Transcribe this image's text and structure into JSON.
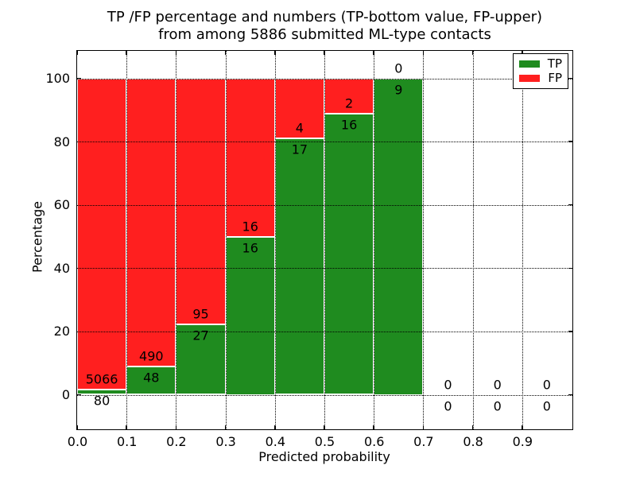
{
  "chart_data": {
    "type": "bar",
    "stacked": true,
    "title_lines": [
      "TP /FP percentage and numbers (TP-bottom value, FP-upper)",
      "from among 5886 submitted ML-type contacts"
    ],
    "xlabel": "Predicted probability",
    "ylabel": "Percentage",
    "x_ticks": [
      "0.0",
      "0.1",
      "0.2",
      "0.3",
      "0.4",
      "0.5",
      "0.6",
      "0.7",
      "0.8",
      "0.9"
    ],
    "y_ticks": [
      0,
      20,
      40,
      60,
      80,
      100
    ],
    "xlim": [
      0.0,
      1.0
    ],
    "ylim": [
      -11,
      109
    ],
    "grid": true,
    "grid_style": "dotted",
    "legend_position": "upper right",
    "legend": [
      {
        "name": "tp",
        "label": "TP",
        "color": "#1f8b1f"
      },
      {
        "name": "fp",
        "label": "FP",
        "color": "#ff1f1f"
      }
    ],
    "bins": [
      {
        "x0": 0.0,
        "x1": 0.1,
        "tp": 80,
        "fp": 5066
      },
      {
        "x0": 0.1,
        "x1": 0.2,
        "tp": 48,
        "fp": 490
      },
      {
        "x0": 0.2,
        "x1": 0.3,
        "tp": 27,
        "fp": 95
      },
      {
        "x0": 0.3,
        "x1": 0.4,
        "tp": 16,
        "fp": 16
      },
      {
        "x0": 0.4,
        "x1": 0.5,
        "tp": 17,
        "fp": 4
      },
      {
        "x0": 0.5,
        "x1": 0.6,
        "tp": 16,
        "fp": 2
      },
      {
        "x0": 0.6,
        "x1": 0.7,
        "tp": 9,
        "fp": 0
      },
      {
        "x0": 0.7,
        "x1": 0.8,
        "tp": 0,
        "fp": 0
      },
      {
        "x0": 0.8,
        "x1": 0.9,
        "tp": 0,
        "fp": 0
      },
      {
        "x0": 0.9,
        "x1": 1.0,
        "tp": 0,
        "fp": 0
      }
    ]
  },
  "colors": {
    "tp": "#1f8b1f",
    "fp": "#ff1f1f",
    "grid": "#000000",
    "spine": "#000000",
    "background": "#ffffff",
    "text": "#000000"
  }
}
